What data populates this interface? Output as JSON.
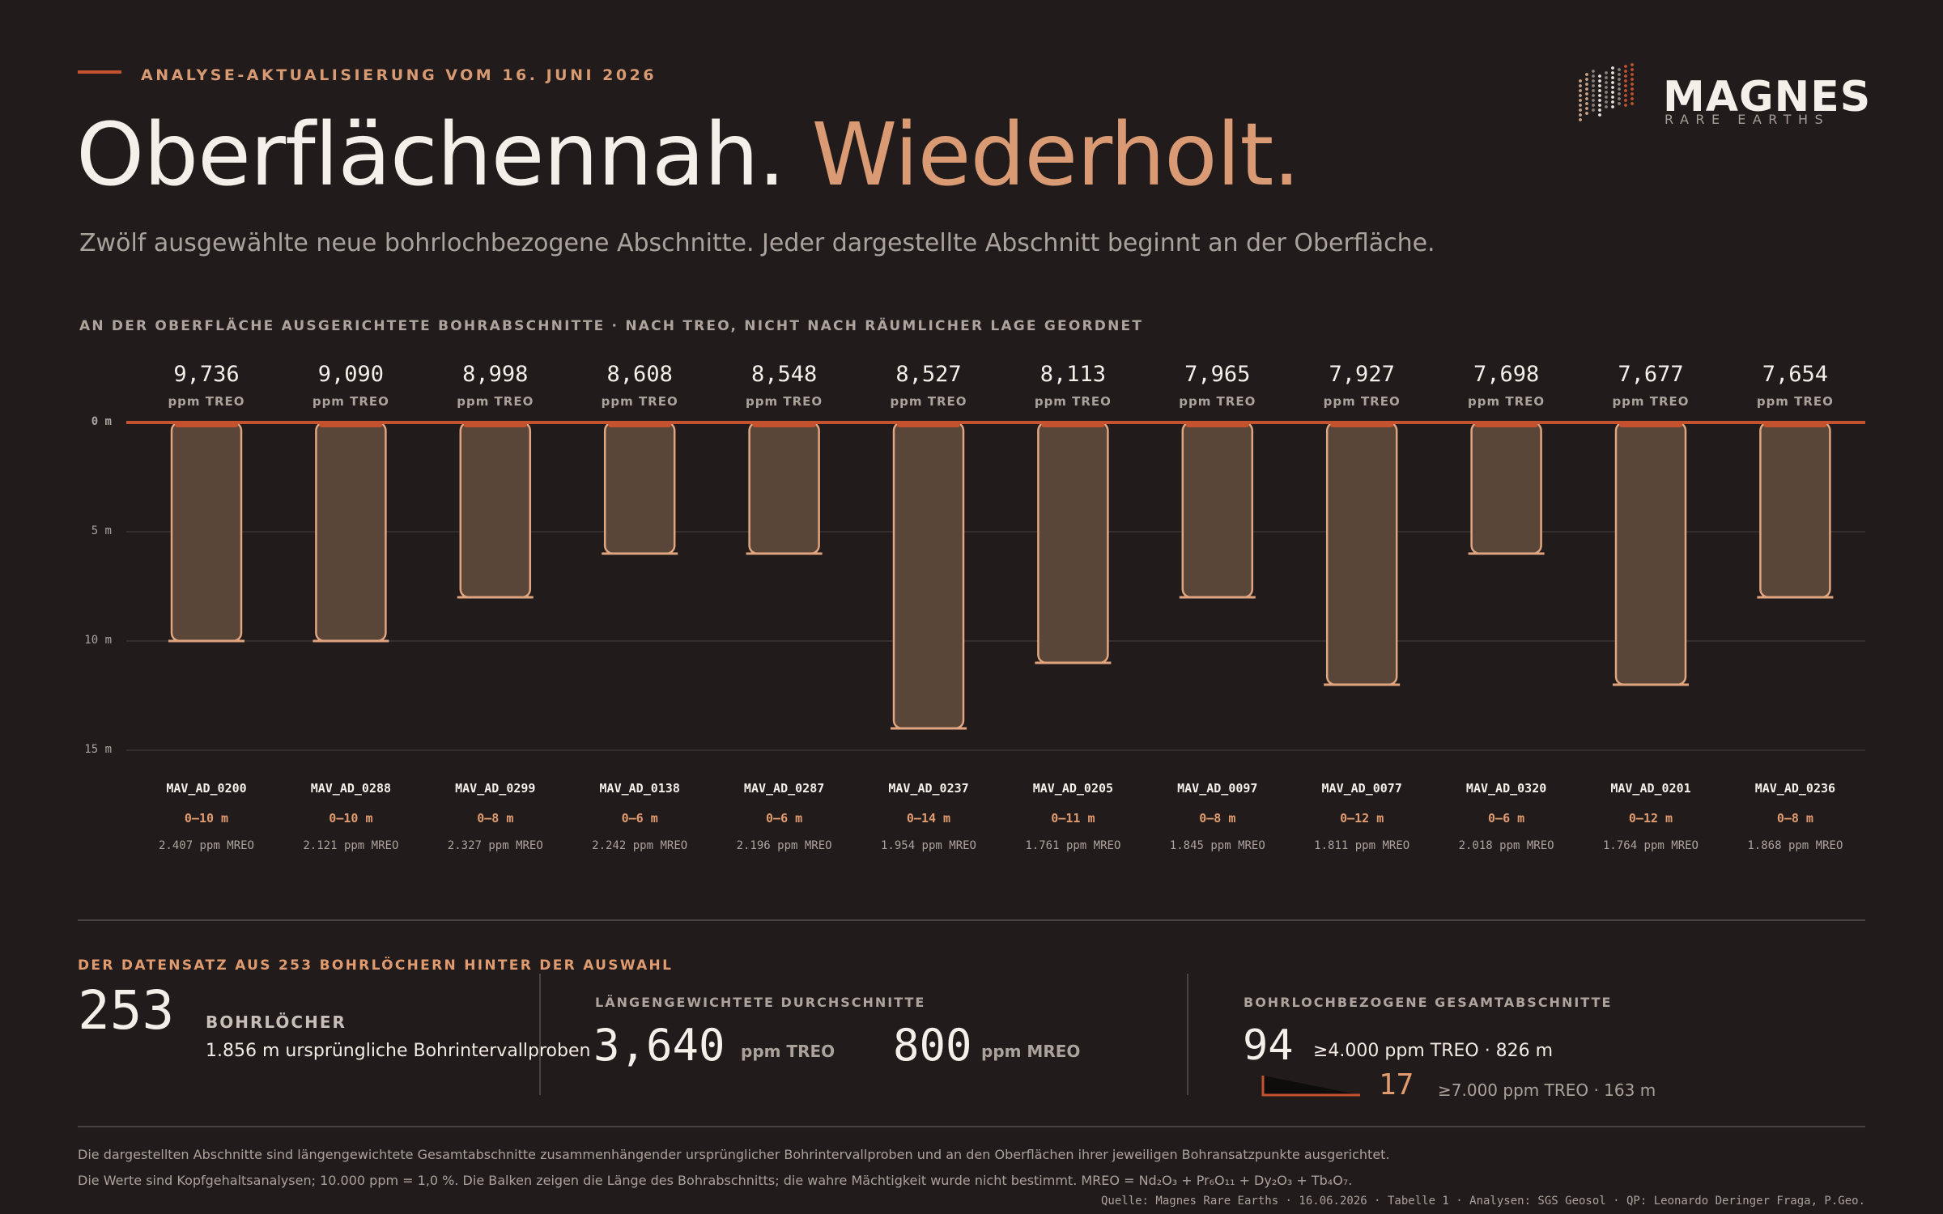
{
  "header": {
    "eyebrow": "ANALYSE-AKTUALISIERUNG VOM 16. JUNI 2026",
    "title_main": "Oberflächennah.",
    "title_accent": "Wiederholt.",
    "subtitle": "Zwölf ausgewählte neue bohrlochbezogene Abschnitte. Jeder dargestellte Abschnitt beginnt an der Oberfläche."
  },
  "logo": {
    "name": "MAGNES",
    "tagline": "RARE EARTHS",
    "icon": "dotted-bars-logo-icon"
  },
  "chart_section_label": "AN DER OBERFLÄCHE AUSGERICHTETE BOHRABSCHNITTE · NACH TREO, NICHT NACH RÄUMLICHER LAGE GEORDNET",
  "colors": {
    "background": "#211b1b",
    "accent": "#c4522f",
    "bar_fill": "#5a4539",
    "bar_stroke": "#e0a57f",
    "highlight": "#d99a74"
  },
  "chart_data": {
    "type": "bar",
    "orientation": "vertical-downward",
    "y_axis_ticks": [
      "0 m",
      "5 m",
      "10 m",
      "15 m"
    ],
    "ylim": [
      0,
      15
    ],
    "grid": true,
    "value_unit": "ppm TREO",
    "intervals": [
      {
        "hole": "MAV_AD_0200",
        "treo": "9,736",
        "interval": "0–10 m",
        "depth_from": 0,
        "depth_to": 10,
        "mreo": "2.407 ppm MREO"
      },
      {
        "hole": "MAV_AD_0288",
        "treo": "9,090",
        "interval": "0–10 m",
        "depth_from": 0,
        "depth_to": 10,
        "mreo": "2.121 ppm MREO"
      },
      {
        "hole": "MAV_AD_0299",
        "treo": "8,998",
        "interval": "0–8 m",
        "depth_from": 0,
        "depth_to": 8,
        "mreo": "2.327 ppm MREO"
      },
      {
        "hole": "MAV_AD_0138",
        "treo": "8,608",
        "interval": "0–6 m",
        "depth_from": 0,
        "depth_to": 6,
        "mreo": "2.242 ppm MREO"
      },
      {
        "hole": "MAV_AD_0287",
        "treo": "8,548",
        "interval": "0–6 m",
        "depth_from": 0,
        "depth_to": 6,
        "mreo": "2.196 ppm MREO"
      },
      {
        "hole": "MAV_AD_0237",
        "treo": "8,527",
        "interval": "0–14 m",
        "depth_from": 0,
        "depth_to": 14,
        "mreo": "1.954 ppm MREO"
      },
      {
        "hole": "MAV_AD_0205",
        "treo": "8,113",
        "interval": "0–11 m",
        "depth_from": 0,
        "depth_to": 11,
        "mreo": "1.761 ppm MREO"
      },
      {
        "hole": "MAV_AD_0097",
        "treo": "7,965",
        "interval": "0–8 m",
        "depth_from": 0,
        "depth_to": 8,
        "mreo": "1.845 ppm MREO"
      },
      {
        "hole": "MAV_AD_0077",
        "treo": "7,927",
        "interval": "0–12 m",
        "depth_from": 0,
        "depth_to": 12,
        "mreo": "1.811 ppm MREO"
      },
      {
        "hole": "MAV_AD_0320",
        "treo": "7,698",
        "interval": "0–6 m",
        "depth_from": 0,
        "depth_to": 6,
        "mreo": "2.018 ppm MREO"
      },
      {
        "hole": "MAV_AD_0201",
        "treo": "7,677",
        "interval": "0–12 m",
        "depth_from": 0,
        "depth_to": 12,
        "mreo": "1.764 ppm MREO"
      },
      {
        "hole": "MAV_AD_0236",
        "treo": "7,654",
        "interval": "0–8 m",
        "depth_from": 0,
        "depth_to": 8,
        "mreo": "1.868 ppm MREO"
      }
    ]
  },
  "dataset": {
    "label": "DER DATENSATZ AUS 253 BOHRLÖCHERN HINTER DER AUSWAHL",
    "holes": {
      "number": "253",
      "caption": "BOHRLÖCHER",
      "detail": "1.856 m ursprüngliche Bohrintervallproben"
    },
    "averages": {
      "label": "LÄNGENGEWICHTETE DURCHSCHNITTE",
      "treo_value": "3,640",
      "treo_unit": "ppm TREO",
      "mreo_value": "800",
      "mreo_unit": "ppm MREO"
    },
    "composites": {
      "label": "BOHRLOCHBEZOGENE GESAMTABSCHNITTE",
      "count_a": "94",
      "desc_a": "≥4.000 ppm TREO · 826 m",
      "count_b": "17",
      "desc_b": "≥7.000 ppm TREO · 163 m"
    }
  },
  "footnotes": {
    "line1": "Die dargestellten Abschnitte sind längengewichtete Gesamtabschnitte zusammenhängender ursprünglicher Bohrintervallproben und an den Oberflächen ihrer jeweiligen Bohransatzpunkte ausgerichtet.",
    "line2": "Die Werte sind Kopfgehaltsanalysen; 10.000 ppm = 1,0 %. Die Balken zeigen die Länge des Bohrabschnitts; die wahre Mächtigkeit wurde nicht bestimmt. MREO = Nd₂O₃ + Pr₆O₁₁ + Dy₂O₃ + Tb₄O₇.",
    "source": "Quelle: Magnes Rare Earths · 16.06.2026 · Tabelle 1 · Analysen: SGS Geosol · QP: Leonardo Deringer Fraga, P.Geo."
  }
}
